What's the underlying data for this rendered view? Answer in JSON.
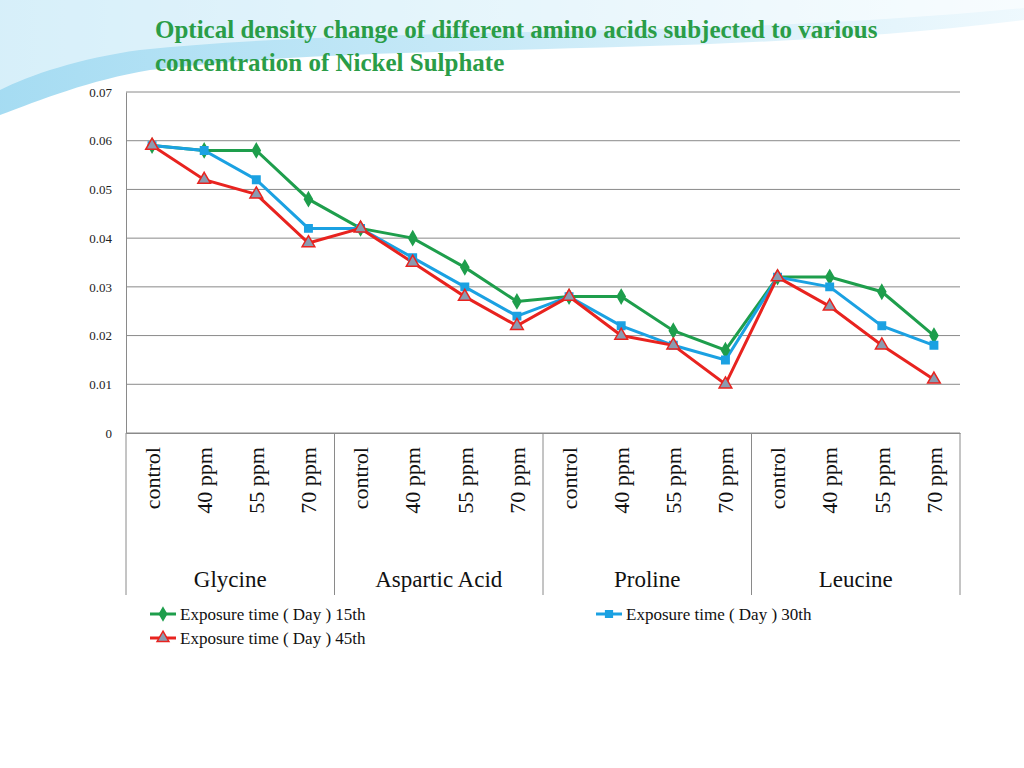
{
  "chart_data": {
    "type": "line",
    "title": "Optical density change of different amino acids subjected to various concentration of Nickel Sulphate",
    "categories": [
      "control",
      "40 ppm",
      "55 ppm",
      "70 ppm",
      "control",
      "40 ppm",
      "55 ppm",
      "70 ppm",
      "control",
      "40 ppm",
      "55 ppm",
      "70 ppm",
      "control",
      "40 ppm",
      "55 ppm",
      "70 ppm"
    ],
    "groups": [
      "Glycine",
      "Aspartic Acid",
      "Proline",
      "Leucine"
    ],
    "series": [
      {
        "name": "Exposure time ( Day ) 15th",
        "color": "#1e9e4c",
        "marker": "diamond",
        "values": [
          0.059,
          0.058,
          0.058,
          0.048,
          0.042,
          0.04,
          0.034,
          0.027,
          0.028,
          0.028,
          0.021,
          0.017,
          0.032,
          0.032,
          0.029,
          0.02
        ]
      },
      {
        "name": "Exposure time ( Day ) 30th",
        "color": "#1ba1e2",
        "marker": "square",
        "values": [
          0.059,
          0.058,
          0.052,
          0.042,
          0.042,
          0.036,
          0.03,
          0.024,
          0.028,
          0.022,
          0.018,
          0.015,
          0.032,
          0.03,
          0.022,
          0.018
        ]
      },
      {
        "name": "Exposure time ( Day ) 45th",
        "color": "#e8231f",
        "marker": "triangle",
        "values": [
          0.059,
          0.052,
          0.049,
          0.039,
          0.042,
          0.035,
          0.028,
          0.022,
          0.028,
          0.02,
          0.018,
          0.01,
          0.032,
          0.026,
          0.018,
          0.011
        ]
      }
    ],
    "ylim": [
      0,
      0.07
    ],
    "yticks": [
      0,
      0.01,
      0.02,
      0.03,
      0.04,
      0.05,
      0.06,
      0.07
    ],
    "grid": true,
    "legend": "bottom"
  }
}
